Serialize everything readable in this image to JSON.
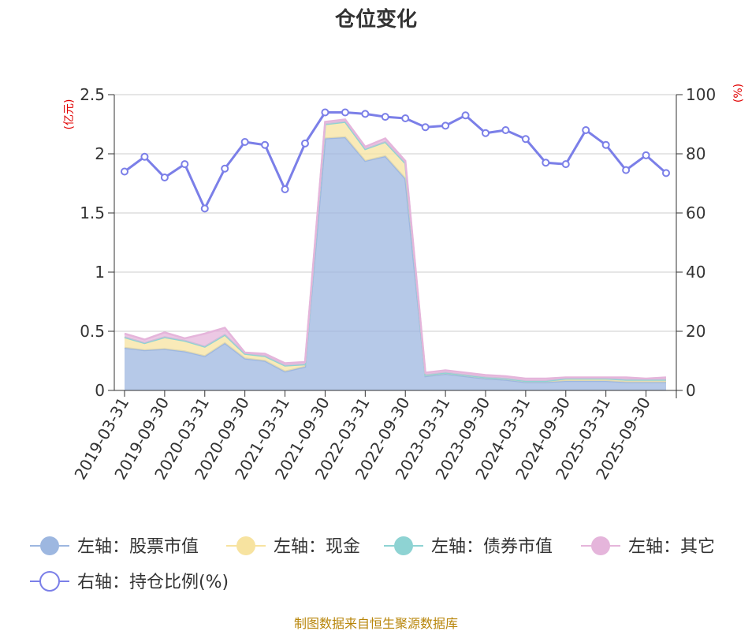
{
  "chart_data": {
    "type": "area",
    "title": "仓位变化",
    "left_axis_unit": "(亿元)",
    "right_axis_unit": "(%)",
    "left_ylim": [
      0,
      2.5
    ],
    "left_ticks": [
      "0",
      "0.5",
      "1",
      "1.5",
      "2",
      "2.5"
    ],
    "right_ylim": [
      0,
      100
    ],
    "right_ticks": [
      "0",
      "20",
      "40",
      "60",
      "80",
      "100"
    ],
    "x_tick_labels": [
      "2019-03-31",
      "2019-09-30",
      "2020-03-31",
      "2020-09-30",
      "2021-03-31",
      "2021-09-30",
      "2022-03-31",
      "2022-09-30",
      "2023-03-31",
      "2023-09-30",
      "2024-03-31",
      "2024-09-30",
      "2025-03-31",
      "2025-09-30"
    ],
    "x": [
      "2019-03-31",
      "2019-06-30",
      "2019-09-30",
      "2019-12-31",
      "2020-03-31",
      "2020-06-30",
      "2020-09-30",
      "2020-12-31",
      "2021-03-31",
      "2021-06-30",
      "2021-09-30",
      "2021-12-31",
      "2022-03-31",
      "2022-06-30",
      "2022-09-30",
      "2022-12-31",
      "2023-03-31",
      "2023-06-30",
      "2023-09-30",
      "2023-12-31",
      "2024-03-31",
      "2024-06-30",
      "2024-09-30",
      "2024-12-31",
      "2025-03-31",
      "2025-06-30",
      "2025-09-30",
      "2025-12-31"
    ],
    "series": [
      {
        "name": "左轴：股票市值",
        "axis": "left",
        "color": "#9db7e0",
        "values": [
          0.36,
          0.34,
          0.35,
          0.33,
          0.29,
          0.4,
          0.27,
          0.25,
          0.16,
          0.2,
          2.13,
          2.14,
          1.94,
          1.98,
          1.79,
          0.12,
          0.14,
          0.12,
          0.1,
          0.09,
          0.07,
          0.07,
          0.08,
          0.08,
          0.08,
          0.07,
          0.07,
          0.07
        ]
      },
      {
        "name": "左轴：现金",
        "axis": "left",
        "color": "#f7e3a0",
        "values": [
          0.09,
          0.06,
          0.1,
          0.09,
          0.08,
          0.07,
          0.04,
          0.04,
          0.05,
          0.02,
          0.12,
          0.13,
          0.1,
          0.12,
          0.13,
          0.01,
          0.01,
          0.01,
          0.01,
          0.01,
          0.01,
          0.01,
          0.02,
          0.02,
          0.02,
          0.02,
          0.02,
          0.02
        ]
      },
      {
        "name": "左轴：债券市值",
        "axis": "left",
        "color": "#8ed3d3",
        "values": [
          0,
          0,
          0,
          0,
          0,
          0,
          0,
          0,
          0,
          0,
          0,
          0,
          0,
          0,
          0,
          0,
          0,
          0,
          0,
          0,
          0,
          0,
          0,
          0,
          0,
          0,
          0,
          0
        ]
      },
      {
        "name": "左轴：其它",
        "axis": "left",
        "color": "#e5b5db",
        "values": [
          0.03,
          0.03,
          0.04,
          0.02,
          0.11,
          0.06,
          0.01,
          0.02,
          0.02,
          0.02,
          0.02,
          0.02,
          0.02,
          0.03,
          0.02,
          0.02,
          0.02,
          0.02,
          0.02,
          0.02,
          0.02,
          0.02,
          0.01,
          0.01,
          0.01,
          0.02,
          0.01,
          0.02
        ]
      },
      {
        "name": "右轴：持仓比例(%)",
        "axis": "right",
        "color": "#7b7fe8",
        "values": [
          74,
          79,
          72,
          76.5,
          61.5,
          75,
          84,
          83,
          68,
          83.5,
          94,
          94,
          93.5,
          92.5,
          92,
          89,
          89.5,
          93,
          87,
          88,
          85,
          77,
          76.5,
          88,
          83,
          74.5,
          79.5,
          73.5
        ]
      }
    ],
    "legend_position": "bottom"
  },
  "source_text": "制图数据来自恒生聚源数据库"
}
